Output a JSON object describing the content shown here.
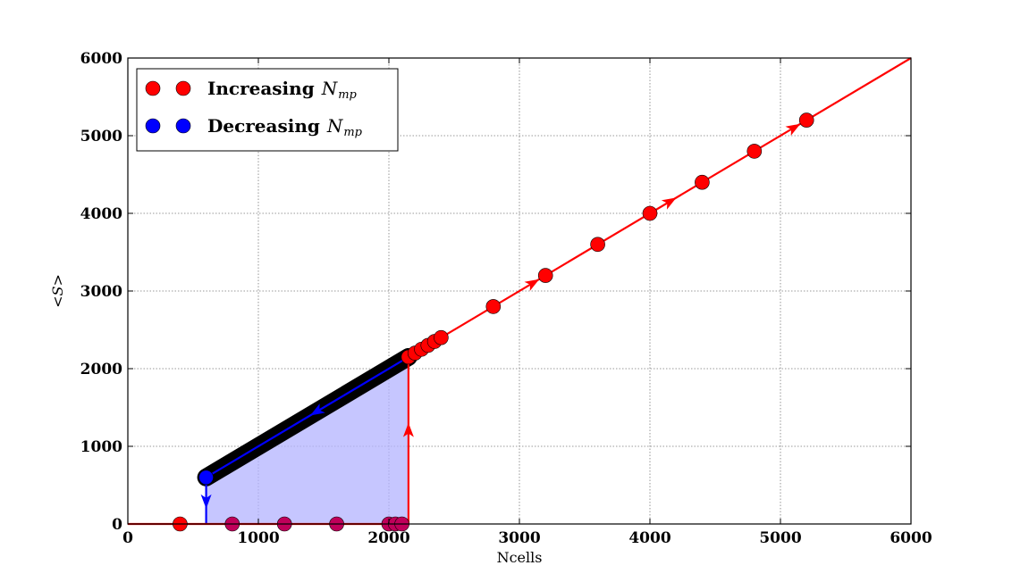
{
  "chart_data": {
    "type": "line",
    "xlabel": "Ncells",
    "ylabel": "<S>",
    "xlim": [
      0,
      6000
    ],
    "ylim": [
      0,
      6000
    ],
    "xticks": [
      "0",
      "1000",
      "2000",
      "3000",
      "4000",
      "5000",
      "6000"
    ],
    "yticks": [
      "0",
      "1000",
      "2000",
      "3000",
      "4000",
      "5000",
      "6000"
    ],
    "grid": true,
    "legend_position": "top-left",
    "series": [
      {
        "name": "Increasing",
        "name_math": "N",
        "name_sub": "mp",
        "color": "#ff0000",
        "points": [
          [
            400,
            0
          ],
          [
            800,
            0
          ],
          [
            1200,
            0
          ],
          [
            1600,
            0
          ],
          [
            2000,
            0
          ],
          [
            2050,
            0
          ],
          [
            2100,
            0
          ],
          [
            2150,
            2150
          ],
          [
            2200,
            2200
          ],
          [
            2250,
            2250
          ],
          [
            2300,
            2300
          ],
          [
            2350,
            2350
          ],
          [
            2400,
            2400
          ],
          [
            2800,
            2800
          ],
          [
            3200,
            3200
          ],
          [
            3600,
            3600
          ],
          [
            4000,
            4000
          ],
          [
            4400,
            4400
          ],
          [
            4800,
            4800
          ],
          [
            5200,
            5200
          ]
        ],
        "path": [
          [
            0,
            0
          ],
          [
            2150,
            0
          ],
          [
            2150,
            2150
          ],
          [
            6000,
            6000
          ]
        ],
        "arrows": [
          [
            2150,
            1200,
            "up"
          ],
          [
            3100,
            3100,
            "diag"
          ],
          [
            4150,
            4150,
            "diag"
          ],
          [
            5100,
            5100,
            "diag"
          ]
        ]
      },
      {
        "name": "Decreasing",
        "name_math": "N",
        "name_sub": "mp",
        "color": "#0000ff",
        "points": [
          [
            600,
            600
          ]
        ],
        "dense_range": [
          600,
          2150
        ],
        "path": [
          [
            2150,
            2150
          ],
          [
            600,
            600
          ],
          [
            600,
            0
          ]
        ],
        "arrows": [
          [
            1450,
            1450,
            "diag-down"
          ],
          [
            600,
            300,
            "down"
          ]
        ]
      }
    ],
    "shaded_region": [
      [
        600,
        0
      ],
      [
        600,
        600
      ],
      [
        2150,
        2150
      ],
      [
        2150,
        0
      ]
    ],
    "shade_color": "#b3b3ff"
  }
}
